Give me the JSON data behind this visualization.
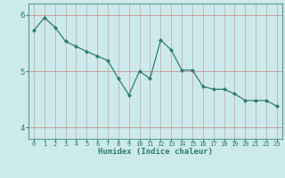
{
  "x": [
    0,
    1,
    2,
    3,
    4,
    5,
    6,
    7,
    8,
    9,
    10,
    11,
    12,
    13,
    14,
    15,
    16,
    17,
    18,
    19,
    20,
    21,
    22,
    23
  ],
  "y": [
    5.72,
    5.95,
    5.78,
    5.53,
    5.44,
    5.35,
    5.27,
    5.19,
    4.87,
    4.58,
    5.0,
    4.87,
    5.55,
    5.38,
    5.02,
    5.02,
    4.73,
    4.68,
    4.68,
    4.6,
    4.48,
    4.48,
    4.48,
    4.38
  ],
  "line_color": "#2e7d6e",
  "marker_color": "#2e7d6e",
  "bg_color": "#cceaeb",
  "grid_color_v": "#c8a0a0",
  "grid_color_h": "#c8a0a0",
  "xlabel": "Humidex (Indice chaleur)",
  "ylim": [
    3.8,
    6.2
  ],
  "xlim": [
    -0.5,
    23.5
  ],
  "yticks": [
    4,
    5,
    6
  ],
  "xticks": [
    0,
    1,
    2,
    3,
    4,
    5,
    6,
    7,
    8,
    9,
    10,
    11,
    12,
    13,
    14,
    15,
    16,
    17,
    18,
    19,
    20,
    21,
    22,
    23
  ],
  "tick_color": "#2e7d6e",
  "spine_color": "#5a9a90",
  "font_color": "#2e7d6e",
  "xlabel_fontsize": 6.5,
  "xtick_fontsize": 5.0,
  "ytick_fontsize": 6.5
}
